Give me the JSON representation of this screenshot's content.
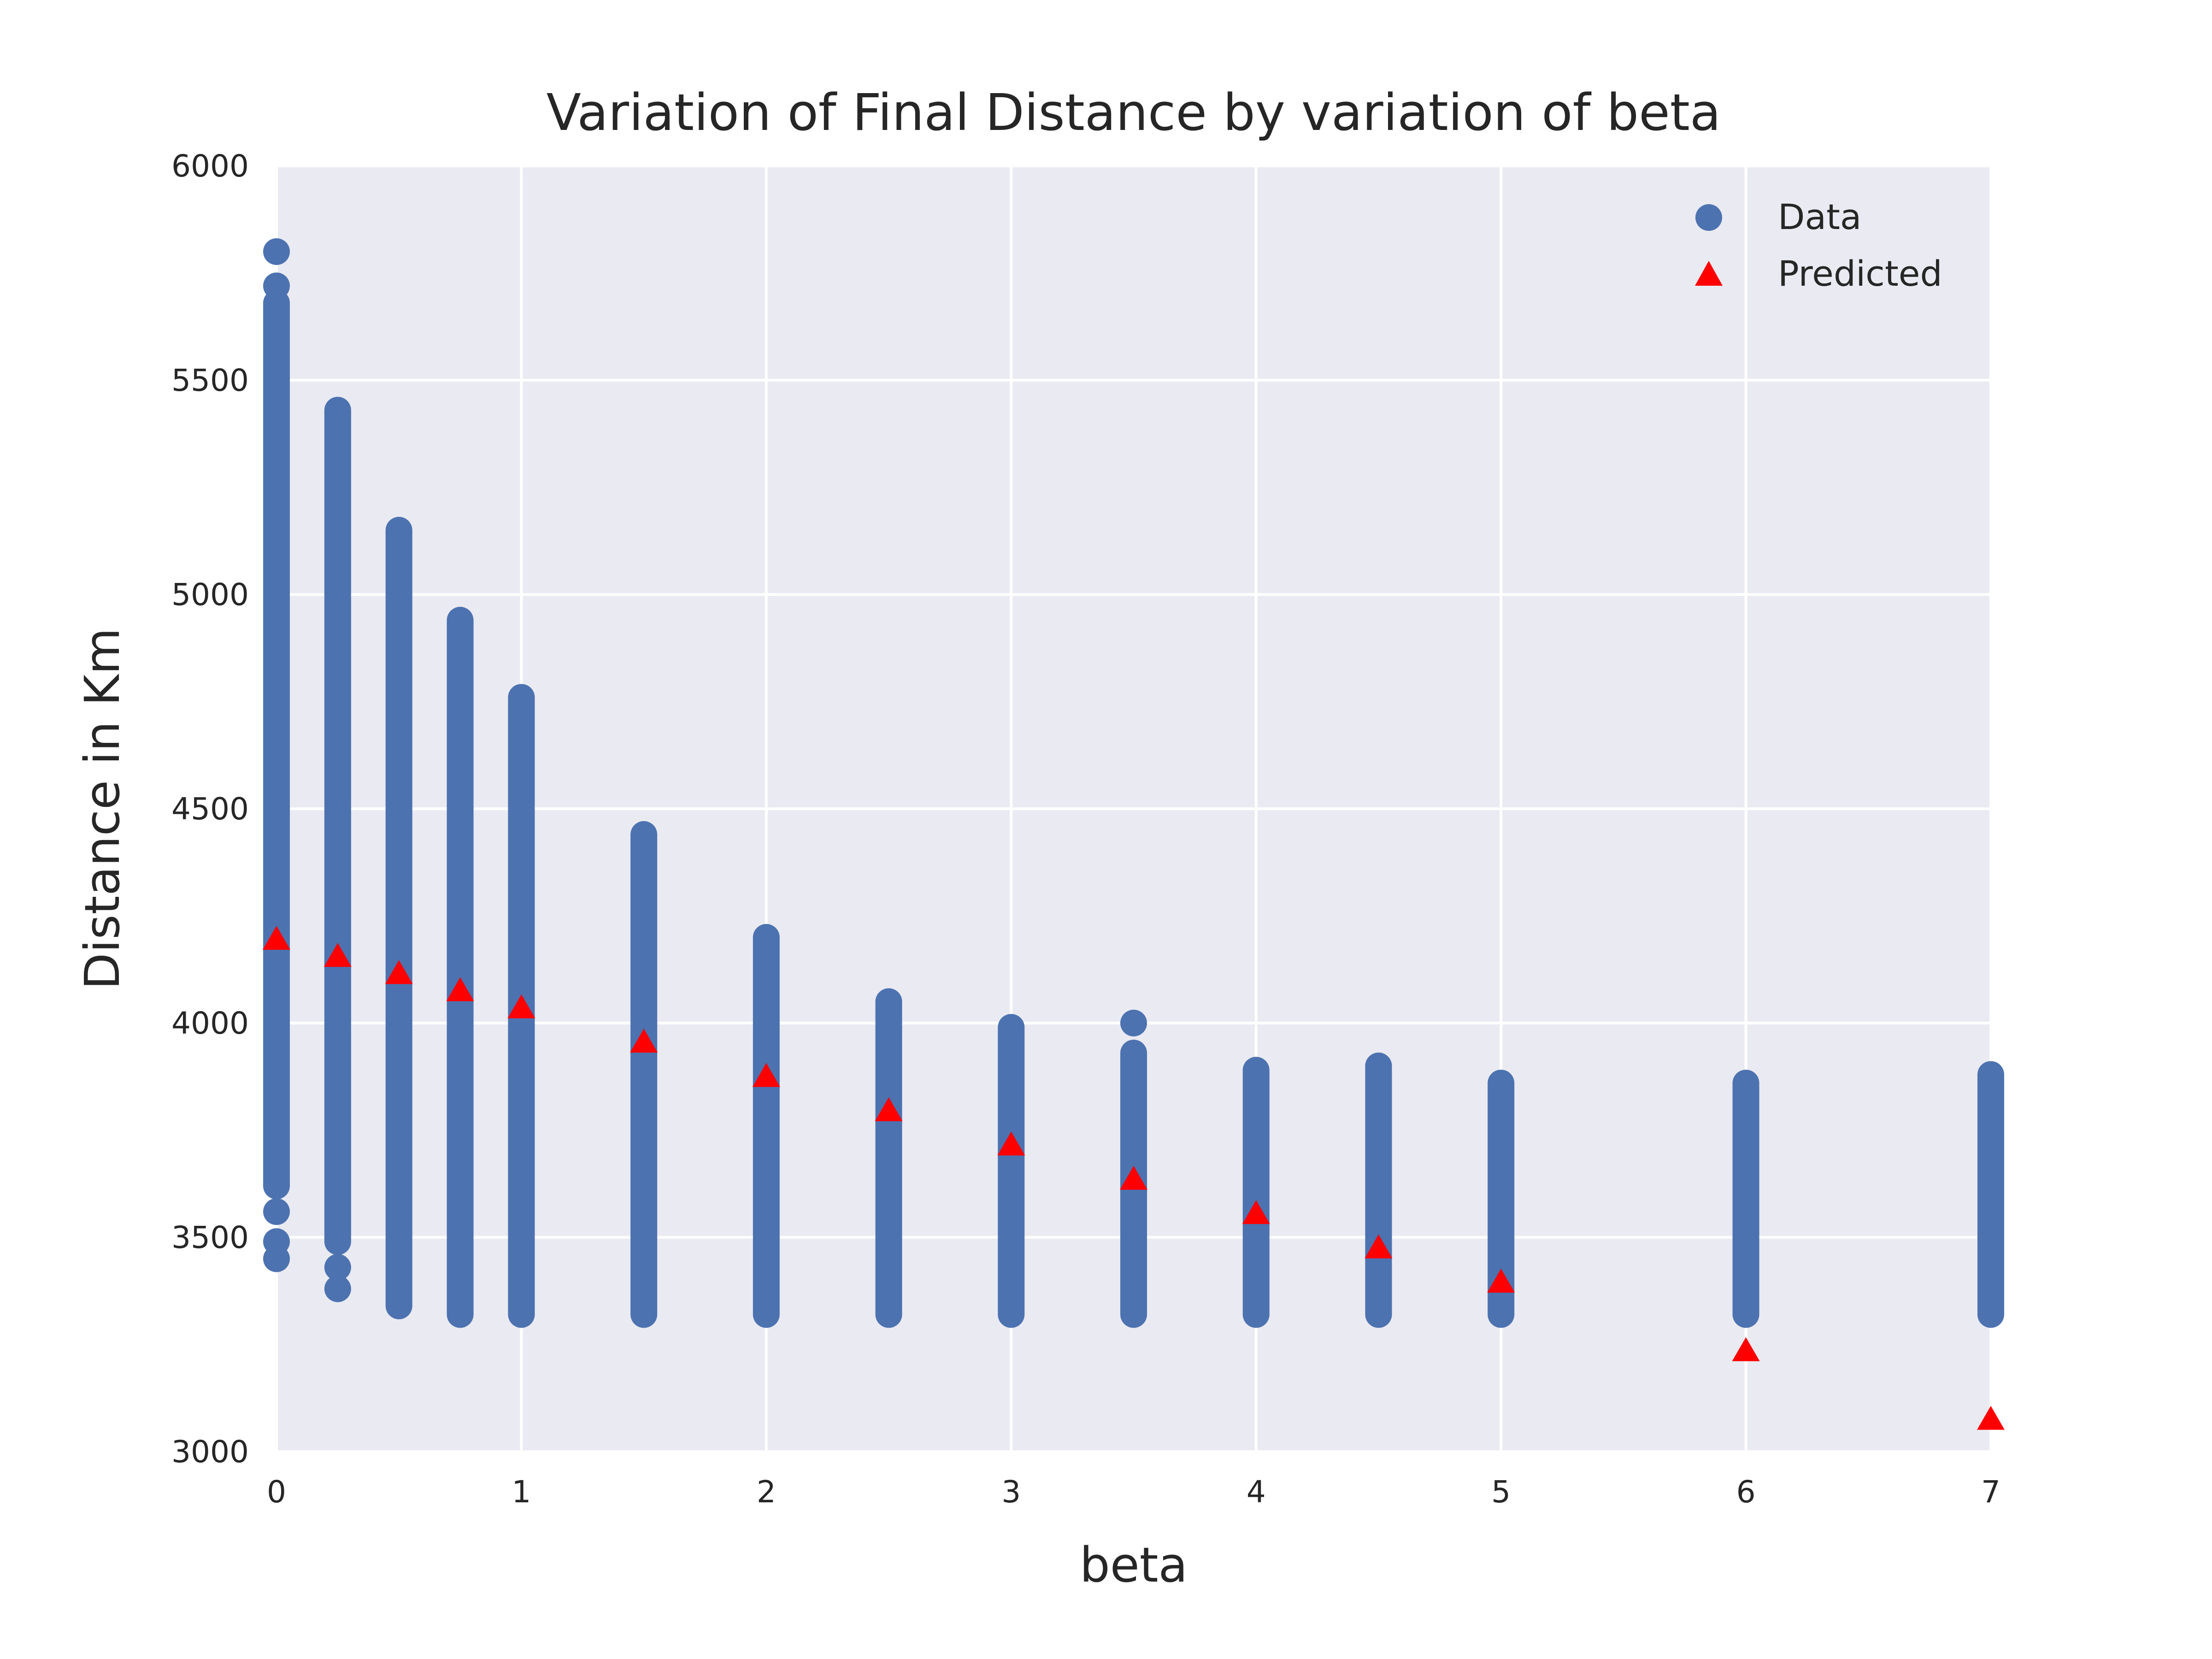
{
  "chart_data": {
    "type": "scatter",
    "title": "Variation of Final Distance by variation of beta",
    "xlabel": "beta",
    "ylabel": "Distance in Km",
    "xlim": [
      0,
      7
    ],
    "ylim": [
      3000,
      6000
    ],
    "xticks": [
      "0",
      "1",
      "2",
      "3",
      "4",
      "5",
      "6",
      "7"
    ],
    "yticks": [
      "3000",
      "3500",
      "4000",
      "4500",
      "5000",
      "5500",
      "6000"
    ],
    "grid": true,
    "legend_position": "top-right",
    "series": [
      {
        "name": "Data",
        "marker": "circle",
        "color": "#4c72b0",
        "columns": [
          {
            "x": 0,
            "ymin": 3620,
            "ymax": 5680
          },
          {
            "x": 0.25,
            "ymin": 3490,
            "ymax": 5430
          },
          {
            "x": 0.5,
            "ymin": 3340,
            "ymax": 5150
          },
          {
            "x": 0.75,
            "ymin": 3320,
            "ymax": 4940
          },
          {
            "x": 1,
            "ymin": 3320,
            "ymax": 4760
          },
          {
            "x": 1.5,
            "ymin": 3320,
            "ymax": 4440
          },
          {
            "x": 2,
            "ymin": 3320,
            "ymax": 4200
          },
          {
            "x": 2.5,
            "ymin": 3320,
            "ymax": 4050
          },
          {
            "x": 3,
            "ymin": 3320,
            "ymax": 3990
          },
          {
            "x": 3.5,
            "ymin": 3320,
            "ymax": 3930
          },
          {
            "x": 4,
            "ymin": 3320,
            "ymax": 3890
          },
          {
            "x": 4.5,
            "ymin": 3320,
            "ymax": 3900
          },
          {
            "x": 5,
            "ymin": 3320,
            "ymax": 3860
          },
          {
            "x": 6,
            "ymin": 3320,
            "ymax": 3860
          },
          {
            "x": 7,
            "ymin": 3320,
            "ymax": 3880
          }
        ],
        "outliers": [
          {
            "x": 0,
            "y": 5800
          },
          {
            "x": 0,
            "y": 5720
          },
          {
            "x": 0,
            "y": 3560
          },
          {
            "x": 0,
            "y": 3490
          },
          {
            "x": 0,
            "y": 3450
          },
          {
            "x": 0.25,
            "y": 3430
          },
          {
            "x": 0.25,
            "y": 3380
          },
          {
            "x": 3.5,
            "y": 4000
          }
        ]
      },
      {
        "name": "Predicted",
        "marker": "triangle",
        "color": "#ff0000",
        "x": [
          0,
          0.25,
          0.5,
          0.75,
          1,
          1.5,
          2,
          2.5,
          3,
          3.5,
          4,
          4.5,
          5,
          6,
          7
        ],
        "y": [
          4190,
          4150,
          4110,
          4070,
          4030,
          3950,
          3870,
          3790,
          3710,
          3630,
          3550,
          3470,
          3390,
          3230,
          3070
        ]
      }
    ]
  }
}
